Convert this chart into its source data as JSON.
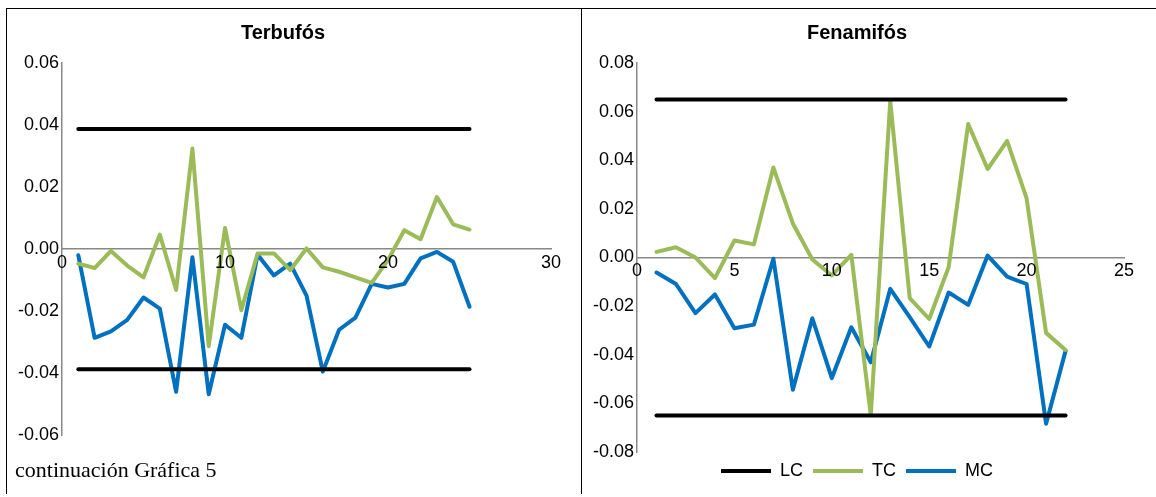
{
  "chart_data": [
    {
      "type": "line",
      "title": "Terbufós",
      "xlim": [
        0,
        30
      ],
      "xticks": [
        0,
        10,
        20,
        30
      ],
      "ylim": [
        -0.06,
        0.06
      ],
      "yticks": [
        {
          "value": -0.06,
          "label": "-0.06"
        },
        {
          "value": -0.04,
          "label": "-0.04"
        },
        {
          "value": -0.02,
          "label": "-0.02"
        },
        {
          "value": 0,
          "label": "0.00"
        },
        {
          "value": 0.02,
          "label": "0.02"
        },
        {
          "value": 0.04,
          "label": "0.04"
        },
        {
          "value": 0.06,
          "label": "0.06"
        }
      ],
      "grid": false,
      "legend": false,
      "marker": "none",
      "line_style": "solid",
      "annotations": [
        "continuación Gráfica 5"
      ],
      "series": [
        {
          "color": "#000000",
          "x": [
            1,
            25
          ],
          "values": [
            0.0387,
            0.0387
          ]
        },
        {
          "color": "#000000",
          "x": [
            1,
            25
          ],
          "values": [
            -0.0387,
            -0.0387
          ]
        },
        {
          "color": "#9bbb59",
          "x": [
            1,
            2,
            3,
            4,
            5,
            6,
            7,
            8,
            9,
            10,
            11,
            12,
            13,
            14,
            15,
            16,
            17,
            18,
            19,
            20,
            21,
            22,
            23,
            24,
            25
          ],
          "values": [
            -0.0047,
            -0.0061,
            -0.0006,
            -0.0053,
            -0.0091,
            0.0047,
            -0.0132,
            0.0324,
            -0.0313,
            0.0068,
            -0.0197,
            -0.0014,
            -0.0014,
            -0.0068,
            0.0002,
            -0.0059,
            -0.0073,
            -0.0091,
            -0.0109,
            -0.0035,
            0.0061,
            0.0032,
            0.0168,
            0.008,
            0.0063
          ]
        },
        {
          "color": "#0070c0",
          "x": [
            1,
            2,
            3,
            4,
            5,
            6,
            7,
            8,
            9,
            10,
            11,
            12,
            13,
            14,
            15,
            16,
            17,
            18,
            19,
            20,
            21,
            22,
            23,
            24,
            25
          ],
          "values": [
            -0.002,
            -0.0286,
            -0.0265,
            -0.0228,
            -0.0156,
            -0.0192,
            -0.046,
            -0.0026,
            -0.0468,
            -0.0244,
            -0.0286,
            -0.0018,
            -0.0085,
            -0.0047,
            -0.015,
            -0.0395,
            -0.026,
            -0.0221,
            -0.0112,
            -0.0124,
            -0.0112,
            -0.003,
            -0.0009,
            -0.0041,
            -0.0186
          ]
        }
      ]
    },
    {
      "type": "line",
      "title": "Fenamifós",
      "xlim": [
        0,
        25
      ],
      "xticks": [
        0,
        5,
        10,
        15,
        20,
        25
      ],
      "ylim": [
        -0.08,
        0.08
      ],
      "yticks": [
        {
          "value": -0.08,
          "label": "-0.08"
        },
        {
          "value": -0.06,
          "label": "-0.06"
        },
        {
          "value": -0.04,
          "label": "-0.04"
        },
        {
          "value": -0.02,
          "label": "-0.02"
        },
        {
          "value": 0,
          "label": "0.00"
        },
        {
          "value": 0.02,
          "label": "0.02"
        },
        {
          "value": 0.04,
          "label": "0.04"
        },
        {
          "value": 0.06,
          "label": "0.06"
        },
        {
          "value": 0.08,
          "label": "0.08"
        }
      ],
      "grid": false,
      "legend": "bottom",
      "marker": "none",
      "line_style": "solid",
      "series": [
        {
          "name": "LC",
          "color": "#000000",
          "x": [
            1,
            22
          ],
          "values": [
            0.065,
            0.065
          ]
        },
        {
          "color": "#000000",
          "x": [
            1,
            22
          ],
          "values": [
            -0.065,
            -0.065
          ]
        },
        {
          "name": "TC",
          "color": "#9bbb59",
          "x": [
            1,
            2,
            3,
            4,
            5,
            6,
            7,
            8,
            9,
            10,
            11,
            12,
            13,
            14,
            15,
            16,
            17,
            18,
            19,
            20,
            21,
            22
          ],
          "values": [
            0.0023,
            0.0042,
            0,
            -0.0085,
            0.007,
            0.0054,
            0.037,
            0.014,
            -0.0008,
            -0.0074,
            0.0011,
            -0.0648,
            0.0643,
            -0.0167,
            -0.0253,
            -0.0039,
            0.0549,
            0.0364,
            0.048,
            0.0243,
            -0.031,
            -0.038
          ]
        },
        {
          "name": "MC",
          "color": "#0070c0",
          "x": [
            1,
            2,
            3,
            4,
            5,
            6,
            7,
            8,
            9,
            10,
            11,
            12,
            13,
            14,
            15,
            16,
            17,
            18,
            19,
            20,
            21,
            22
          ],
          "values": [
            -0.0062,
            -0.0109,
            -0.0229,
            -0.0152,
            -0.0291,
            -0.0276,
            -0.0005,
            -0.0544,
            -0.025,
            -0.0496,
            -0.0287,
            -0.0431,
            -0.0129,
            -0.0245,
            -0.0366,
            -0.0144,
            -0.0195,
            0.0008,
            -0.0079,
            -0.0109,
            -0.0684,
            -0.0384
          ]
        }
      ]
    }
  ]
}
